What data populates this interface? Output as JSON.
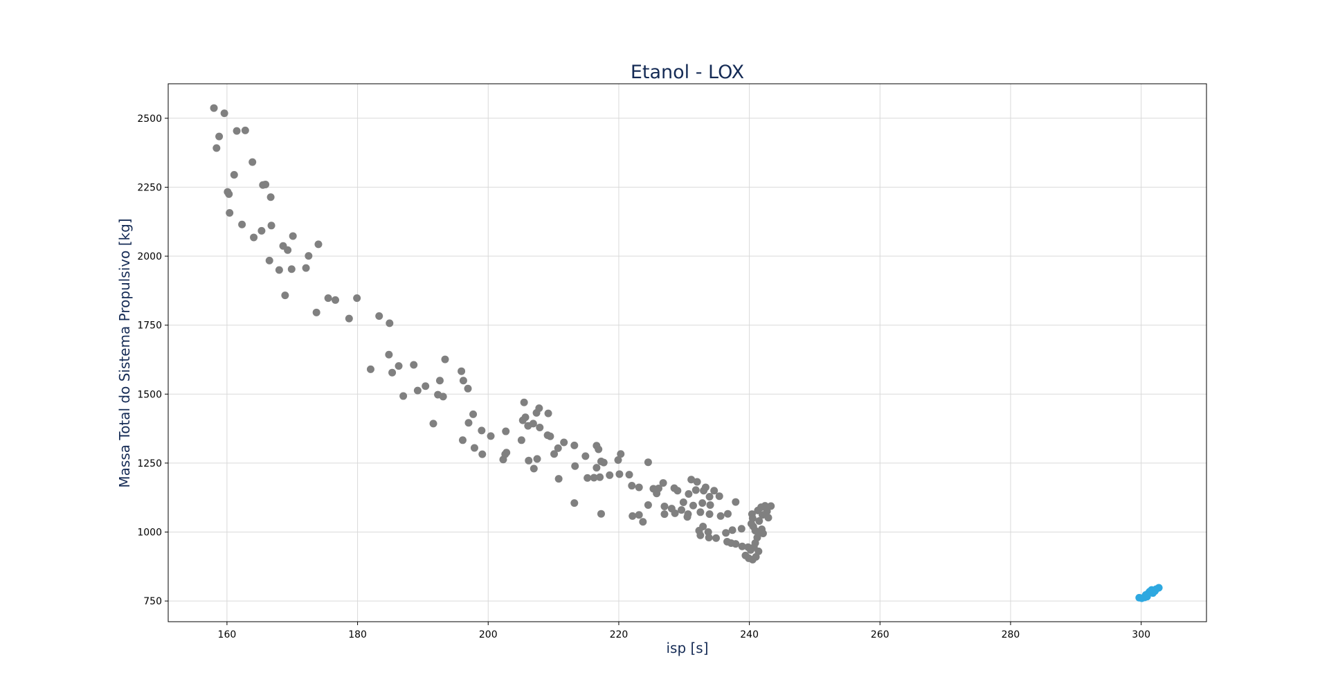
{
  "chart_data": {
    "type": "scatter",
    "title": "Etanol - LOX",
    "xlabel": "isp [s]",
    "ylabel": "Massa Total do Sistema Propulsivo [kg]",
    "xlim": [
      151,
      310
    ],
    "ylim": [
      675,
      2625
    ],
    "xticks": [
      "160",
      "180",
      "200",
      "220",
      "240",
      "260",
      "280",
      "300"
    ],
    "yticks": [
      "750",
      "1000",
      "1250",
      "1500",
      "1750",
      "2000",
      "2250",
      "2500"
    ],
    "grid": true,
    "colors": {
      "title": "#152b55",
      "label": "#152b55",
      "series_gray": "#808080",
      "series_blue": "#2ea8e0"
    },
    "series": [
      {
        "color": "#808080",
        "points": [
          [
            158.0,
            2537
          ],
          [
            159.6,
            2518
          ],
          [
            158.8,
            2434
          ],
          [
            158.4,
            2392
          ],
          [
            161.5,
            2454
          ],
          [
            162.8,
            2456
          ],
          [
            163.9,
            2341
          ],
          [
            161.1,
            2295
          ],
          [
            160.1,
            2233
          ],
          [
            160.3,
            2225
          ],
          [
            165.5,
            2258
          ],
          [
            165.9,
            2260
          ],
          [
            166.7,
            2214
          ],
          [
            160.4,
            2157
          ],
          [
            162.3,
            2115
          ],
          [
            166.8,
            2111
          ],
          [
            165.3,
            2092
          ],
          [
            164.1,
            2068
          ],
          [
            170.1,
            2073
          ],
          [
            168.6,
            2037
          ],
          [
            169.3,
            2022
          ],
          [
            174.0,
            2043
          ],
          [
            172.5,
            2001
          ],
          [
            166.5,
            1984
          ],
          [
            168.0,
            1950
          ],
          [
            169.9,
            1953
          ],
          [
            172.1,
            1957
          ],
          [
            168.9,
            1858
          ],
          [
            175.5,
            1848
          ],
          [
            176.6,
            1841
          ],
          [
            179.9,
            1848
          ],
          [
            173.7,
            1796
          ],
          [
            178.7,
            1774
          ],
          [
            183.3,
            1783
          ],
          [
            184.9,
            1757
          ],
          [
            184.8,
            1643
          ],
          [
            182.0,
            1590
          ],
          [
            185.3,
            1578
          ],
          [
            186.3,
            1602
          ],
          [
            188.6,
            1606
          ],
          [
            193.4,
            1626
          ],
          [
            192.6,
            1549
          ],
          [
            190.4,
            1529
          ],
          [
            189.2,
            1513
          ],
          [
            187.0,
            1493
          ],
          [
            192.3,
            1498
          ],
          [
            193.1,
            1491
          ],
          [
            195.9,
            1583
          ],
          [
            196.2,
            1549
          ],
          [
            196.9,
            1520
          ],
          [
            191.6,
            1393
          ],
          [
            197.0,
            1396
          ],
          [
            197.7,
            1427
          ],
          [
            199.0,
            1368
          ],
          [
            200.4,
            1348
          ],
          [
            196.1,
            1333
          ],
          [
            197.9,
            1305
          ],
          [
            199.1,
            1282
          ],
          [
            202.7,
            1365
          ],
          [
            205.1,
            1333
          ],
          [
            202.6,
            1282
          ],
          [
            202.3,
            1263
          ],
          [
            202.8,
            1288
          ],
          [
            205.5,
            1470
          ],
          [
            207.8,
            1449
          ],
          [
            207.4,
            1432
          ],
          [
            205.7,
            1416
          ],
          [
            205.3,
            1405
          ],
          [
            206.1,
            1385
          ],
          [
            206.9,
            1393
          ],
          [
            207.9,
            1379
          ],
          [
            209.2,
            1430
          ],
          [
            209.1,
            1351
          ],
          [
            209.5,
            1347
          ],
          [
            210.7,
            1304
          ],
          [
            211.6,
            1325
          ],
          [
            213.2,
            1314
          ],
          [
            210.1,
            1283
          ],
          [
            206.2,
            1259
          ],
          [
            207.5,
            1265
          ],
          [
            207.0,
            1230
          ],
          [
            210.8,
            1193
          ],
          [
            213.3,
            1239
          ],
          [
            214.9,
            1275
          ],
          [
            216.6,
            1313
          ],
          [
            216.9,
            1300
          ],
          [
            217.3,
            1256
          ],
          [
            217.7,
            1252
          ],
          [
            216.6,
            1233
          ],
          [
            220.3,
            1283
          ],
          [
            219.9,
            1261
          ],
          [
            218.6,
            1206
          ],
          [
            220.1,
            1210
          ],
          [
            221.6,
            1208
          ],
          [
            217.1,
            1199
          ],
          [
            215.2,
            1196
          ],
          [
            216.2,
            1197
          ],
          [
            224.5,
            1253
          ],
          [
            222.0,
            1168
          ],
          [
            223.1,
            1162
          ],
          [
            225.3,
            1157
          ],
          [
            226.1,
            1158
          ],
          [
            225.8,
            1140
          ],
          [
            226.8,
            1178
          ],
          [
            228.5,
            1159
          ],
          [
            229.0,
            1150
          ],
          [
            231.1,
            1190
          ],
          [
            232.0,
            1182
          ],
          [
            233.3,
            1162
          ],
          [
            231.8,
            1152
          ],
          [
            233.0,
            1150
          ],
          [
            234.6,
            1150
          ],
          [
            230.7,
            1138
          ],
          [
            233.9,
            1128
          ],
          [
            235.4,
            1130
          ],
          [
            237.9,
            1109
          ],
          [
            229.9,
            1108
          ],
          [
            232.8,
            1105
          ],
          [
            234.0,
            1098
          ],
          [
            231.4,
            1096
          ],
          [
            224.5,
            1098
          ],
          [
            227.0,
            1093
          ],
          [
            228.1,
            1085
          ],
          [
            229.6,
            1080
          ],
          [
            230.6,
            1065
          ],
          [
            232.5,
            1072
          ],
          [
            233.9,
            1065
          ],
          [
            235.6,
            1058
          ],
          [
            236.7,
            1066
          ],
          [
            213.2,
            1105
          ],
          [
            217.3,
            1066
          ],
          [
            222.1,
            1058
          ],
          [
            223.1,
            1062
          ],
          [
            223.7,
            1037
          ],
          [
            227.0,
            1065
          ],
          [
            228.6,
            1068
          ],
          [
            230.5,
            1055
          ],
          [
            232.9,
            1020
          ],
          [
            232.3,
            1005
          ],
          [
            233.7,
            1000
          ],
          [
            232.5,
            988
          ],
          [
            233.8,
            980
          ],
          [
            234.9,
            978
          ],
          [
            236.4,
            997
          ],
          [
            237.4,
            1007
          ],
          [
            238.8,
            1012
          ],
          [
            236.6,
            965
          ],
          [
            237.2,
            960
          ],
          [
            237.9,
            957
          ],
          [
            238.9,
            948
          ],
          [
            239.4,
            915
          ],
          [
            239.9,
            905
          ],
          [
            240.5,
            900
          ],
          [
            241.0,
            910
          ],
          [
            240.7,
            945
          ],
          [
            240.9,
            960
          ],
          [
            241.2,
            980
          ],
          [
            241.6,
            1000
          ],
          [
            240.3,
            1030
          ],
          [
            240.5,
            1050
          ],
          [
            240.4,
            1065
          ],
          [
            241.3,
            1078
          ],
          [
            241.8,
            1090
          ],
          [
            242.4,
            1095
          ],
          [
            243.3,
            1094
          ],
          [
            242.7,
            1075
          ],
          [
            242.0,
            1062
          ],
          [
            242.9,
            1052
          ],
          [
            241.5,
            1040
          ],
          [
            240.6,
            1020
          ],
          [
            241.9,
            1010
          ],
          [
            242.1,
            995
          ],
          [
            241.4,
            930
          ],
          [
            240.2,
            935
          ],
          [
            239.8,
            945
          ],
          [
            240.9,
            1005
          ]
        ]
      },
      {
        "color": "#2ea8e0",
        "points": [
          [
            299.7,
            762
          ],
          [
            300.1,
            760
          ],
          [
            300.5,
            763
          ],
          [
            300.9,
            766
          ],
          [
            301.1,
            778
          ],
          [
            301.3,
            784
          ],
          [
            301.6,
            790
          ],
          [
            301.9,
            788
          ],
          [
            302.3,
            793
          ],
          [
            302.7,
            798
          ],
          [
            300.7,
            772
          ],
          [
            301.8,
            779
          ],
          [
            302.1,
            786
          ]
        ]
      }
    ]
  }
}
